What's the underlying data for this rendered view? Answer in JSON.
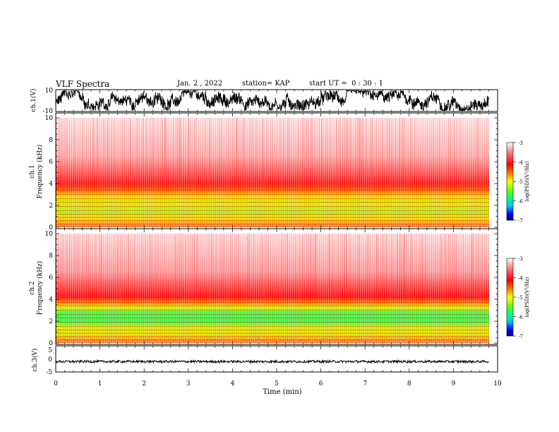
{
  "header": {
    "title": "VLF Spectra",
    "date": "Jan. 2 , 2022",
    "station": "station= KAP",
    "start": "start UT =  0 : 30 : 1"
  },
  "colors": {
    "ink": "#000000",
    "colormap": [
      "#000080",
      "#0000ff",
      "#00c0ff",
      "#00ff80",
      "#60ff00",
      "#ffff00",
      "#ff8000",
      "#ff0000",
      "#ff8080",
      "#ffffff"
    ]
  },
  "chart_data": [
    {
      "type": "line",
      "panel": "waveform-ch1",
      "ylabel": "ch.1(V)",
      "ylim": [
        -10,
        10
      ],
      "ytick_labels": [
        "-10",
        "10"
      ],
      "xlim": [
        0,
        10
      ],
      "description_series": "dense black noise waveform spanning roughly -8 to 8 V"
    },
    {
      "type": "heatmap",
      "panel": "spectrogram-ch1",
      "ylabel_top": "ch.1",
      "ylabel": "Frequency (kHz)",
      "ylim": [
        0,
        10
      ],
      "ytick_labels": [
        "0",
        "2",
        "4",
        "6",
        "8",
        "10"
      ],
      "xlim": [
        0,
        10
      ],
      "colorbar": {
        "label": "log(PSD)(V²/Hz)",
        "range": [
          -7,
          -3
        ],
        "tick_labels": [
          "-3",
          "-4",
          "-5",
          "-6",
          "-7"
        ]
      }
    },
    {
      "type": "heatmap",
      "panel": "spectrogram-ch2",
      "ylabel_top": "ch.2",
      "ylabel": "Frequency (kHz)",
      "ylim": [
        0,
        10
      ],
      "ytick_labels": [
        "0",
        "2",
        "4",
        "6",
        "8",
        "10"
      ],
      "xlim": [
        0,
        10
      ],
      "colorbar": {
        "label": "log(PSD)(V²/Hz)",
        "range": [
          -7,
          -3
        ],
        "tick_labels": [
          "-3",
          "-4",
          "-5",
          "-6",
          "-7"
        ]
      }
    },
    {
      "type": "line",
      "panel": "waveform-ch3",
      "ylabel": "ch.3(V)",
      "ylim": [
        -5,
        5
      ],
      "ytick_labels": [
        "-5",
        "0",
        "5"
      ],
      "xlim": [
        0,
        10
      ],
      "xlabel": "Time (min)",
      "xtick_labels": [
        "0",
        "1",
        "2",
        "3",
        "4",
        "5",
        "6",
        "7",
        "8",
        "9",
        "10"
      ],
      "description_series": "narrow noise band near -1 V"
    }
  ]
}
